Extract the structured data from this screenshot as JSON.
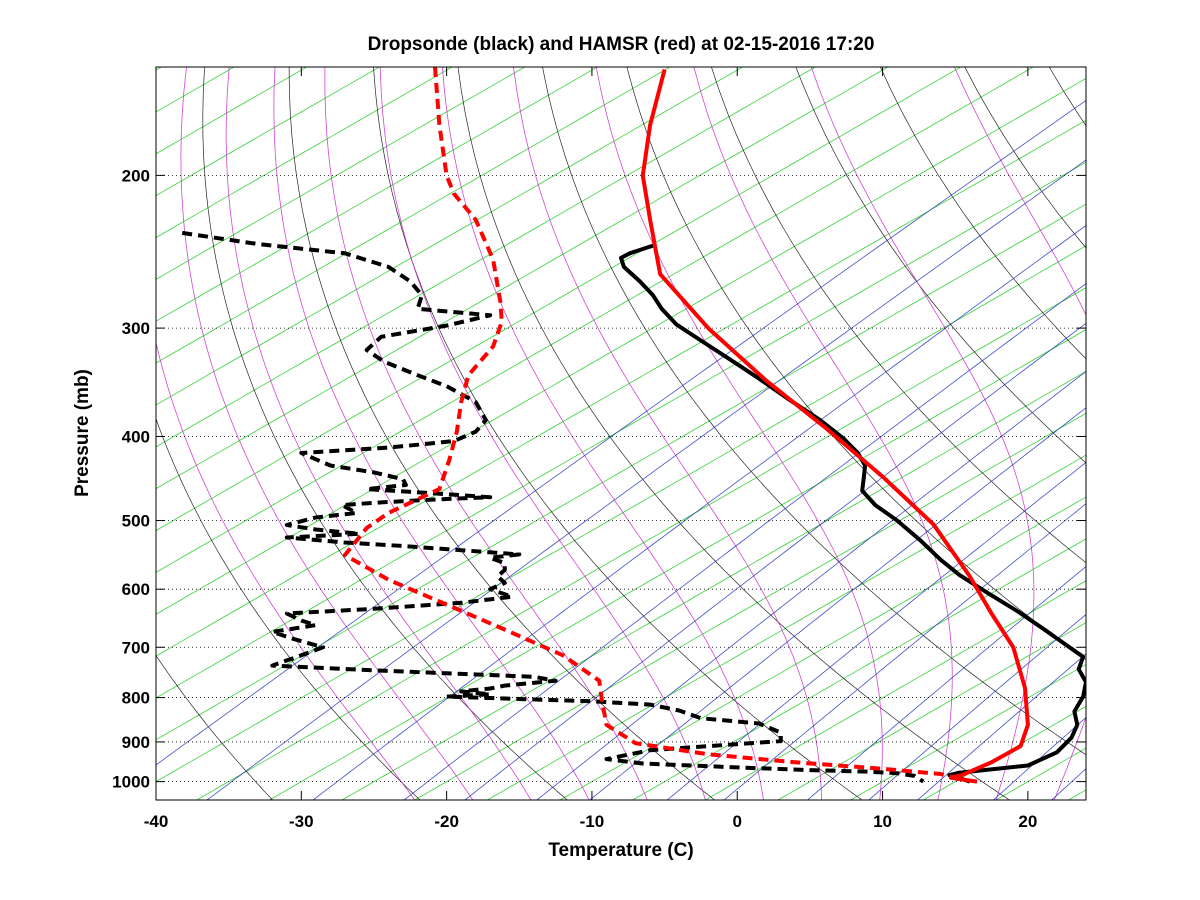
{
  "chart_data": {
    "type": "line",
    "title": "Dropsonde (black) and HAMSR (red) at 02-15-2016 17:20",
    "xlabel": "Temperature (C)",
    "ylabel": "Pressure (mb)",
    "xlim": [
      -40,
      24
    ],
    "ylim": [
      1050,
      150
    ],
    "y_scale": "log",
    "x_ticks": [
      -40,
      -30,
      -20,
      -10,
      0,
      10,
      20
    ],
    "y_ticks": [
      200,
      300,
      400,
      500,
      600,
      700,
      800,
      900,
      1000
    ],
    "grid": "dotted horizontal at y ticks",
    "background_lines": {
      "isotherms_skewed": "green",
      "dry_adiabats": "black",
      "moist_adiabats": "magenta",
      "mixing_ratio": "blue"
    },
    "colors": {
      "dropsonde": "#000000",
      "hamsr": "#ff0000"
    },
    "series": [
      {
        "name": "Dropsonde",
        "variable": "temperature",
        "style": "solid",
        "color": "#000000",
        "points": [
          [
            -5.8,
            241
          ],
          [
            -7.4,
            246
          ],
          [
            -8,
            249
          ],
          [
            -7.8,
            255
          ],
          [
            -6.7,
            265
          ],
          [
            -5.8,
            275
          ],
          [
            -5.2,
            285
          ],
          [
            -4.2,
            297
          ],
          [
            -2.5,
            310
          ],
          [
            -0.5,
            326
          ],
          [
            1.5,
            343
          ],
          [
            3.5,
            362
          ],
          [
            5.7,
            383
          ],
          [
            7.3,
            402
          ],
          [
            8.3,
            418
          ],
          [
            8.8,
            432
          ],
          [
            8.7,
            447
          ],
          [
            8.6,
            462
          ],
          [
            9.5,
            480
          ],
          [
            11,
            500
          ],
          [
            12.6,
            527
          ],
          [
            14,
            555
          ],
          [
            15.3,
            578
          ],
          [
            17.3,
            607
          ],
          [
            19.4,
            638
          ],
          [
            21.2,
            669
          ],
          [
            22.7,
            697
          ],
          [
            23.8,
            718
          ],
          [
            23.5,
            742
          ],
          [
            24,
            768
          ],
          [
            23.8,
            798
          ],
          [
            23.2,
            830
          ],
          [
            23.4,
            860
          ],
          [
            23,
            890
          ],
          [
            22,
            925
          ],
          [
            20,
            958
          ],
          [
            16.5,
            972
          ],
          [
            15.2,
            977
          ],
          [
            14.6,
            983
          ],
          [
            15.4,
            992
          ],
          [
            16,
            1000
          ]
        ]
      },
      {
        "name": "Dropsonde",
        "variable": "dewpoint",
        "style": "dashed",
        "color": "#000000",
        "points": [
          [
            -38.2,
            233
          ],
          [
            -33,
            240
          ],
          [
            -27,
            246
          ],
          [
            -24,
            255
          ],
          [
            -22.5,
            265
          ],
          [
            -21.7,
            275
          ],
          [
            -22,
            285
          ],
          [
            -17,
            290
          ],
          [
            -20,
            298
          ],
          [
            -24.5,
            307
          ],
          [
            -25.5,
            318
          ],
          [
            -24.3,
            328
          ],
          [
            -22,
            340
          ],
          [
            -20,
            350
          ],
          [
            -18,
            365
          ],
          [
            -17.3,
            383
          ],
          [
            -18,
            395
          ],
          [
            -19.5,
            405
          ],
          [
            -24,
            412
          ],
          [
            -30,
            418
          ],
          [
            -29,
            425
          ],
          [
            -28,
            432
          ],
          [
            -25,
            440
          ],
          [
            -23,
            448
          ],
          [
            -22.8,
            455
          ],
          [
            -25.5,
            460
          ],
          [
            -21,
            465
          ],
          [
            -17,
            470
          ],
          [
            -21,
            473
          ],
          [
            -25,
            477
          ],
          [
            -27.2,
            480
          ],
          [
            -26.2,
            490
          ],
          [
            -29,
            496
          ],
          [
            -31,
            506
          ],
          [
            -29,
            512
          ],
          [
            -26,
            518
          ],
          [
            -31,
            523
          ],
          [
            -27,
            530
          ],
          [
            -23,
            535
          ],
          [
            -19,
            541
          ],
          [
            -15,
            547
          ],
          [
            -17,
            552
          ],
          [
            -16,
            560
          ],
          [
            -16,
            570
          ],
          [
            -16.5,
            580
          ],
          [
            -16,
            590
          ],
          [
            -17,
            600
          ],
          [
            -15.5,
            612
          ],
          [
            -19,
            622
          ],
          [
            -25,
            632
          ],
          [
            -31,
            640
          ],
          [
            -30,
            652
          ],
          [
            -29,
            660
          ],
          [
            -32,
            672
          ],
          [
            -30.5,
            685
          ],
          [
            -28.5,
            700
          ],
          [
            -30,
            715
          ],
          [
            -32,
            735
          ],
          [
            -26,
            743
          ],
          [
            -20,
            750
          ],
          [
            -14,
            757
          ],
          [
            -12.5,
            765
          ],
          [
            -16,
            775
          ],
          [
            -17,
            781
          ],
          [
            -19,
            787
          ],
          [
            -17,
            793
          ],
          [
            -20,
            798
          ],
          [
            -15,
            803
          ],
          [
            -10,
            808
          ],
          [
            -6,
            815
          ],
          [
            -4,
            828
          ],
          [
            -2.5,
            845
          ],
          [
            1.5,
            857
          ],
          [
            3,
            878
          ],
          [
            3,
            898
          ],
          [
            -6,
            920
          ],
          [
            -9,
            942
          ],
          [
            -6.5,
            953
          ],
          [
            0,
            963
          ],
          [
            5,
            970
          ],
          [
            9,
            974
          ],
          [
            11,
            978
          ],
          [
            12.2,
            985
          ],
          [
            12.8,
            1000
          ]
        ]
      },
      {
        "name": "HAMSR",
        "variable": "temperature",
        "style": "solid",
        "color": "#ff0000",
        "points": [
          [
            -5,
            151
          ],
          [
            -6,
            175
          ],
          [
            -6.5,
            200
          ],
          [
            -6,
            225
          ],
          [
            -5.3,
            260
          ],
          [
            -2,
            300
          ],
          [
            2,
            345
          ],
          [
            6,
            390
          ],
          [
            10,
            445
          ],
          [
            13.5,
            505
          ],
          [
            16,
            580
          ],
          [
            17.5,
            640
          ],
          [
            19,
            700
          ],
          [
            19.8,
            780
          ],
          [
            20,
            860
          ],
          [
            19.5,
            910
          ],
          [
            17.5,
            950
          ],
          [
            15.5,
            982
          ],
          [
            14.7,
            990
          ],
          [
            16.5,
            1000
          ]
        ]
      },
      {
        "name": "HAMSR",
        "variable": "dewpoint",
        "style": "dashed",
        "color": "#ff0000",
        "points": [
          [
            -20.8,
            150
          ],
          [
            -20.5,
            175
          ],
          [
            -20,
            200
          ],
          [
            -19.5,
            210
          ],
          [
            -18,
            225
          ],
          [
            -16.8,
            250
          ],
          [
            -16.3,
            280
          ],
          [
            -16.2,
            295
          ],
          [
            -16.8,
            315
          ],
          [
            -18.5,
            340
          ],
          [
            -19,
            365
          ],
          [
            -19.3,
            395
          ],
          [
            -19.8,
            425
          ],
          [
            -20.5,
            460
          ],
          [
            -24,
            490
          ],
          [
            -25.5,
            510
          ],
          [
            -27,
            548
          ],
          [
            -24,
            585
          ],
          [
            -20,
            625
          ],
          [
            -16,
            668
          ],
          [
            -12,
            715
          ],
          [
            -9.5,
            765
          ],
          [
            -9.3,
            808
          ],
          [
            -9,
            860
          ],
          [
            -7,
            903
          ],
          [
            -2,
            930
          ],
          [
            4,
            950
          ],
          [
            9.5,
            965
          ],
          [
            14,
            980
          ],
          [
            15,
            990
          ],
          [
            15.5,
            998
          ]
        ]
      }
    ]
  }
}
